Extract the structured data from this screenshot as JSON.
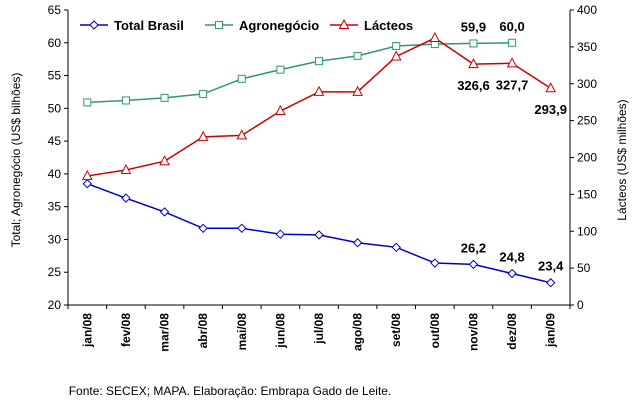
{
  "chart_data": {
    "type": "line",
    "categories": [
      "jan/08",
      "fev/08",
      "mar/08",
      "abr/08",
      "mai/08",
      "jun/08",
      "jul/08",
      "ago/08",
      "set/08",
      "out/08",
      "nov/08",
      "dez/08",
      "jan/09"
    ],
    "series": [
      {
        "name": "Total Brasil",
        "color": "#0000cc",
        "marker": "diamond",
        "axis": "y",
        "values": [
          38.5,
          36.3,
          34.2,
          31.7,
          31.7,
          30.8,
          30.7,
          29.5,
          28.8,
          26.4,
          26.2,
          24.8,
          23.4
        ],
        "value_labels": [
          null,
          null,
          null,
          null,
          null,
          null,
          null,
          null,
          null,
          null,
          "26,2",
          "24,8",
          "23,4"
        ]
      },
      {
        "name": "Agronegócio",
        "color": "#339966",
        "marker": "square",
        "axis": "y",
        "values": [
          50.9,
          51.2,
          51.6,
          52.2,
          54.5,
          55.9,
          57.2,
          58.0,
          59.5,
          59.8,
          59.9,
          60.0,
          null
        ],
        "value_labels": [
          null,
          null,
          null,
          null,
          null,
          null,
          null,
          null,
          null,
          null,
          "59,9",
          "60,0",
          null
        ]
      },
      {
        "name": "Lácteos",
        "color": "#cc0000",
        "marker": "triangle",
        "axis": "y2",
        "values": [
          175,
          183,
          195,
          228,
          230,
          263,
          289,
          289,
          337,
          362,
          326.6,
          327.7,
          293.9
        ],
        "value_labels": [
          null,
          null,
          null,
          null,
          null,
          null,
          null,
          null,
          null,
          null,
          "326,6",
          "327,7",
          "293,9"
        ]
      }
    ],
    "ylabel": "Total; Agronegócio (US$ bilhões)",
    "y2label": "Lácteos (US$ milhões)",
    "ylim": [
      20,
      65
    ],
    "yticks": [
      20,
      25,
      30,
      35,
      40,
      45,
      50,
      55,
      60,
      65
    ],
    "y2lim": [
      0,
      400
    ],
    "y2ticks": [
      0,
      50,
      100,
      150,
      200,
      250,
      300,
      350,
      400
    ],
    "source": "Fonte: SECEX; MAPA. Elaboração: Embrapa Gado de Leite."
  }
}
